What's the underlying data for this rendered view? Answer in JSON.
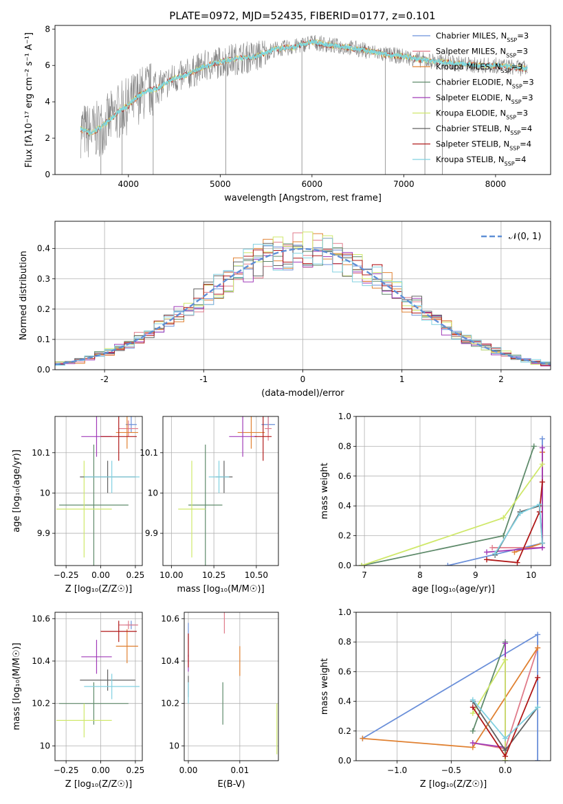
{
  "figure": {
    "title": "PLATE=0972, MJD=52435, FIBERID=0177, z=0.101"
  },
  "models": [
    {
      "name": "Chabrier MILES, N_SSP=3",
      "color": "#6a8fd9"
    },
    {
      "name": "Salpeter MILES, N_SSP=3",
      "color": "#e07b8a"
    },
    {
      "name": "Kroupa MILES, N_SSP=3",
      "color": "#e08030"
    },
    {
      "name": "Chabrier ELODIE, N_SSP=3",
      "color": "#5e8a6a"
    },
    {
      "name": "Salpeter ELODIE, N_SSP=3",
      "color": "#a03ab8"
    },
    {
      "name": "Kroupa ELODIE, N_SSP=3",
      "color": "#cfe86a"
    },
    {
      "name": "Chabrier STELIB, N_SSP=4",
      "color": "#606060"
    },
    {
      "name": "Salpeter STELIB, N_SSP=4",
      "color": "#b01818"
    },
    {
      "name": "Kroupa STELIB, N_SSP=4",
      "color": "#80d0e0"
    }
  ],
  "chart_data": [
    {
      "id": "spectrum",
      "type": "line",
      "xlabel": "wavelength [Angstrom, rest frame]",
      "ylabel": "Flux [fλ10⁻¹⁷ erg cm⁻² s⁻¹ A⁻¹]",
      "xlim": [
        3200,
        8600
      ],
      "ylim": [
        0,
        8.2
      ],
      "xticks": [
        4000,
        5000,
        6000,
        7000,
        8000
      ],
      "yticks": [
        0,
        2,
        4,
        6,
        8
      ],
      "data_color": "#808080",
      "model_color": "#7dd8e0",
      "continuum_x": [
        3480,
        3600,
        3700,
        3800,
        3900,
        4000,
        4100,
        4200,
        4300,
        4400,
        4500,
        4600,
        4800,
        5000,
        5200,
        5400,
        5600,
        5800,
        6000,
        6200,
        6400,
        6600,
        6800,
        7000,
        7200,
        7400,
        7600,
        7800,
        8000,
        8200,
        8350
      ],
      "continuum_y": [
        2.5,
        2.3,
        2.6,
        3.0,
        3.5,
        3.8,
        4.3,
        4.6,
        4.7,
        5.0,
        5.3,
        5.4,
        5.9,
        6.2,
        6.4,
        6.5,
        6.9,
        7.0,
        7.3,
        7.1,
        7.0,
        6.8,
        6.6,
        6.5,
        6.3,
        6.2,
        6.1,
        6.0,
        6.0,
        5.9,
        5.8
      ],
      "grid": false
    },
    {
      "id": "residuals",
      "type": "line",
      "xlabel": "(data-model)/error",
      "ylabel": "Normed distribution",
      "xlim": [
        -2.5,
        2.5
      ],
      "ylim": [
        0,
        0.49
      ],
      "xticks": [
        -2,
        -1,
        0,
        1,
        2
      ],
      "yticks": [
        0.0,
        0.1,
        0.2,
        0.3,
        0.4
      ],
      "legend": "𝒩(0, 1)",
      "legend_position": "top-right",
      "grid": true,
      "bin_width": 0.1,
      "hist_x_start": -2.5
    },
    {
      "id": "age-vs-Z",
      "type": "scatter",
      "xlabel": "Z [log₁₀(Z/Z☉)]",
      "ylabel": "age  [log₁₀(age/yr)]",
      "xlim": [
        -0.33,
        0.3
      ],
      "ylim": [
        9.82,
        10.19
      ],
      "xticks": [
        -0.25,
        0.0,
        0.25
      ],
      "xticklabels": [
        "−0.25",
        "0.00",
        "0.25"
      ],
      "yticks": [
        9.9,
        10.0,
        10.1
      ],
      "grid": true,
      "points": [
        {
          "m": 0,
          "x": 0.22,
          "y": 10.17,
          "ex": 0.04,
          "ey": 0.02
        },
        {
          "m": 1,
          "x": 0.2,
          "y": 10.16,
          "ex": 0.07,
          "ey": 0.02
        },
        {
          "m": 2,
          "x": 0.19,
          "y": 10.15,
          "ex": 0.08,
          "ey": 0.04
        },
        {
          "m": 3,
          "x": -0.05,
          "y": 9.97,
          "ex": 0.25,
          "ey": 0.15
        },
        {
          "m": 4,
          "x": -0.03,
          "y": 10.14,
          "ex": 0.11,
          "ey": 0.05
        },
        {
          "m": 5,
          "x": -0.12,
          "y": 9.96,
          "ex": 0.2,
          "ey": 0.12
        },
        {
          "m": 6,
          "x": 0.05,
          "y": 10.04,
          "ex": 0.2,
          "ey": 0.04
        },
        {
          "m": 7,
          "x": 0.13,
          "y": 10.14,
          "ex": 0.13,
          "ey": 0.06
        },
        {
          "m": 8,
          "x": 0.08,
          "y": 10.04,
          "ex": 0.2,
          "ey": 0.04
        }
      ]
    },
    {
      "id": "age-vs-mass",
      "type": "scatter",
      "xlabel": "mass [log₁₀(M/M☉)]",
      "ylabel": "",
      "xlim": [
        9.95,
        10.63
      ],
      "ylim": [
        9.82,
        10.19
      ],
      "xticks": [
        10.0,
        10.25,
        10.5
      ],
      "xticklabels": [
        "10.00",
        "10.25",
        "10.50"
      ],
      "yticks": [
        9.9,
        10.0,
        10.1
      ],
      "grid": true,
      "points": [
        {
          "m": 0,
          "x": 10.57,
          "y": 10.17,
          "ex": 0.04,
          "ey": 0.02
        },
        {
          "m": 1,
          "x": 10.57,
          "y": 10.16,
          "ex": 0.02,
          "ey": 0.03
        },
        {
          "m": 2,
          "x": 10.47,
          "y": 10.15,
          "ex": 0.08,
          "ey": 0.04
        },
        {
          "m": 3,
          "x": 10.2,
          "y": 9.97,
          "ex": 0.1,
          "ey": 0.15
        },
        {
          "m": 4,
          "x": 10.42,
          "y": 10.14,
          "ex": 0.08,
          "ey": 0.05
        },
        {
          "m": 5,
          "x": 10.12,
          "y": 9.96,
          "ex": 0.08,
          "ey": 0.12
        },
        {
          "m": 6,
          "x": 10.31,
          "y": 10.04,
          "ex": 0.05,
          "ey": 0.04
        },
        {
          "m": 7,
          "x": 10.54,
          "y": 10.14,
          "ex": 0.05,
          "ey": 0.06
        },
        {
          "m": 8,
          "x": 10.28,
          "y": 10.04,
          "ex": 0.06,
          "ey": 0.04
        }
      ]
    },
    {
      "id": "weight-vs-age",
      "type": "line",
      "xlabel": "age  [log₁₀(age/yr)]",
      "ylabel": "mass weight",
      "xlim": [
        6.85,
        10.35
      ],
      "ylim": [
        0,
        1.0
      ],
      "xticks": [
        7,
        8,
        9,
        10
      ],
      "yticks": [
        0.0,
        0.2,
        0.4,
        0.6,
        0.8,
        1.0
      ],
      "grid": true,
      "series": [
        {
          "m": 0,
          "x": [
            8.5,
            10.2,
            10.2
          ],
          "y": [
            0.0,
            0.15,
            0.85
          ]
        },
        {
          "m": 1,
          "x": [
            9.3,
            10.2,
            10.2
          ],
          "y": [
            0.12,
            0.12,
            0.76
          ]
        },
        {
          "m": 2,
          "x": [
            9.7,
            10.2,
            10.2
          ],
          "y": [
            0.09,
            0.15,
            0.76
          ]
        },
        {
          "m": 3,
          "x": [
            6.95,
            9.5,
            10.05
          ],
          "y": [
            0.0,
            0.2,
            0.8
          ]
        },
        {
          "m": 4,
          "x": [
            9.2,
            10.2,
            10.2
          ],
          "y": [
            0.09,
            0.12,
            0.79
          ]
        },
        {
          "m": 5,
          "x": [
            6.95,
            9.5,
            10.2
          ],
          "y": [
            0.0,
            0.32,
            0.68
          ]
        },
        {
          "m": 6,
          "x": [
            9.35,
            9.8,
            10.15,
            10.2
          ],
          "y": [
            0.07,
            0.36,
            0.4,
            0.15
          ]
        },
        {
          "m": 7,
          "x": [
            9.2,
            9.75,
            10.15,
            10.2
          ],
          "y": [
            0.04,
            0.02,
            0.36,
            0.56
          ]
        },
        {
          "m": 8,
          "x": [
            9.35,
            9.8,
            10.15,
            10.2
          ],
          "y": [
            0.08,
            0.35,
            0.41,
            0.15
          ]
        }
      ]
    },
    {
      "id": "mass-vs-Z",
      "type": "scatter",
      "xlabel": "Z [log₁₀(Z/Z☉)]",
      "ylabel": "mass [log₁₀(M/M☉)]",
      "xlim": [
        -0.33,
        0.3
      ],
      "ylim": [
        9.93,
        10.63
      ],
      "xticks": [
        -0.25,
        0.0,
        0.25
      ],
      "xticklabels": [
        "−0.25",
        "0.00",
        "0.25"
      ],
      "yticks": [
        10.0,
        10.2,
        10.4,
        10.6
      ],
      "grid": true,
      "points": [
        {
          "m": 0,
          "x": 0.22,
          "y": 10.57,
          "ex": 0.04,
          "ey": 0.02
        },
        {
          "m": 1,
          "x": 0.2,
          "y": 10.57,
          "ex": 0.07,
          "ey": 0.02
        },
        {
          "m": 2,
          "x": 0.19,
          "y": 10.47,
          "ex": 0.08,
          "ey": 0.08
        },
        {
          "m": 3,
          "x": -0.05,
          "y": 10.2,
          "ex": 0.25,
          "ey": 0.1
        },
        {
          "m": 4,
          "x": -0.03,
          "y": 10.42,
          "ex": 0.11,
          "ey": 0.08
        },
        {
          "m": 5,
          "x": -0.12,
          "y": 10.12,
          "ex": 0.2,
          "ey": 0.08
        },
        {
          "m": 6,
          "x": 0.05,
          "y": 10.31,
          "ex": 0.2,
          "ey": 0.05
        },
        {
          "m": 7,
          "x": 0.13,
          "y": 10.54,
          "ex": 0.13,
          "ey": 0.05
        },
        {
          "m": 8,
          "x": 0.08,
          "y": 10.28,
          "ex": 0.2,
          "ey": 0.06
        }
      ]
    },
    {
      "id": "mass-vs-EBV",
      "type": "scatter",
      "xlabel": "E(B-V)",
      "ylabel": "",
      "xlim": [
        -0.0008,
        0.0175
      ],
      "ylim": [
        9.93,
        10.63
      ],
      "xticks": [
        0.0,
        0.01
      ],
      "xticklabels": [
        "0.00",
        "0.01"
      ],
      "yticks": [
        10.0,
        10.2,
        10.4,
        10.6
      ],
      "grid": true,
      "points": [
        {
          "m": 0,
          "x": 0.0,
          "y": 10.5,
          "ex": 0,
          "ey": 0.08
        },
        {
          "m": 1,
          "x": 0.007,
          "y": 10.58,
          "ex": 0,
          "ey": 0.05
        },
        {
          "m": 2,
          "x": 0.01,
          "y": 10.4,
          "ex": 0,
          "ey": 0.07
        },
        {
          "m": 3,
          "x": 0.0067,
          "y": 10.2,
          "ex": 0,
          "ey": 0.1
        },
        {
          "m": 4,
          "x": 0.0,
          "y": 10.39,
          "ex": 0,
          "ey": 0.04
        },
        {
          "m": 5,
          "x": 0.0172,
          "y": 10.08,
          "ex": 0,
          "ey": 0.12
        },
        {
          "m": 6,
          "x": 0.0,
          "y": 10.28,
          "ex": 0,
          "ey": 0.05
        },
        {
          "m": 7,
          "x": 0.0,
          "y": 10.45,
          "ex": 0,
          "ey": 0.08
        },
        {
          "m": 8,
          "x": 0.0,
          "y": 10.25,
          "ex": 0,
          "ey": 0.05
        }
      ]
    },
    {
      "id": "weight-vs-Z",
      "type": "line",
      "xlabel": "Z [log₁₀(Z/Z☉)]",
      "ylabel": "mass weight",
      "xlim": [
        -1.38,
        0.42
      ],
      "ylim": [
        0,
        1.0
      ],
      "xticks": [
        -1.0,
        -0.5,
        0.0
      ],
      "xticklabels": [
        "−1.0",
        "−0.5",
        "0.0"
      ],
      "yticks": [
        0.0,
        0.2,
        0.4,
        0.6,
        0.8,
        1.0
      ],
      "grid": true,
      "series": [
        {
          "m": 0,
          "x": [
            -1.32,
            0.3,
            0.3
          ],
          "y": [
            0.15,
            0.85,
            0.0
          ]
        },
        {
          "m": 1,
          "x": [
            -0.3,
            0.0,
            0.3
          ],
          "y": [
            0.12,
            0.08,
            0.76
          ]
        },
        {
          "m": 2,
          "x": [
            -1.32,
            -0.3,
            0.3
          ],
          "y": [
            0.15,
            0.09,
            0.76
          ]
        },
        {
          "m": 3,
          "x": [
            -0.3,
            0.0,
            0.0
          ],
          "y": [
            0.2,
            0.8,
            0.0
          ]
        },
        {
          "m": 4,
          "x": [
            -0.3,
            0.0,
            0.0
          ],
          "y": [
            0.12,
            0.09,
            0.79
          ]
        },
        {
          "m": 5,
          "x": [
            -0.3,
            0.0,
            0.0
          ],
          "y": [
            0.32,
            0.68,
            0.0
          ]
        },
        {
          "m": 6,
          "x": [
            -0.3,
            0.0,
            0.3
          ],
          "y": [
            0.4,
            0.07,
            0.36
          ]
        },
        {
          "m": 7,
          "x": [
            -0.3,
            0.0,
            0.3
          ],
          "y": [
            0.36,
            0.03,
            0.56
          ]
        },
        {
          "m": 8,
          "x": [
            -0.3,
            0.0,
            0.3
          ],
          "y": [
            0.41,
            0.15,
            0.36
          ]
        }
      ]
    }
  ]
}
